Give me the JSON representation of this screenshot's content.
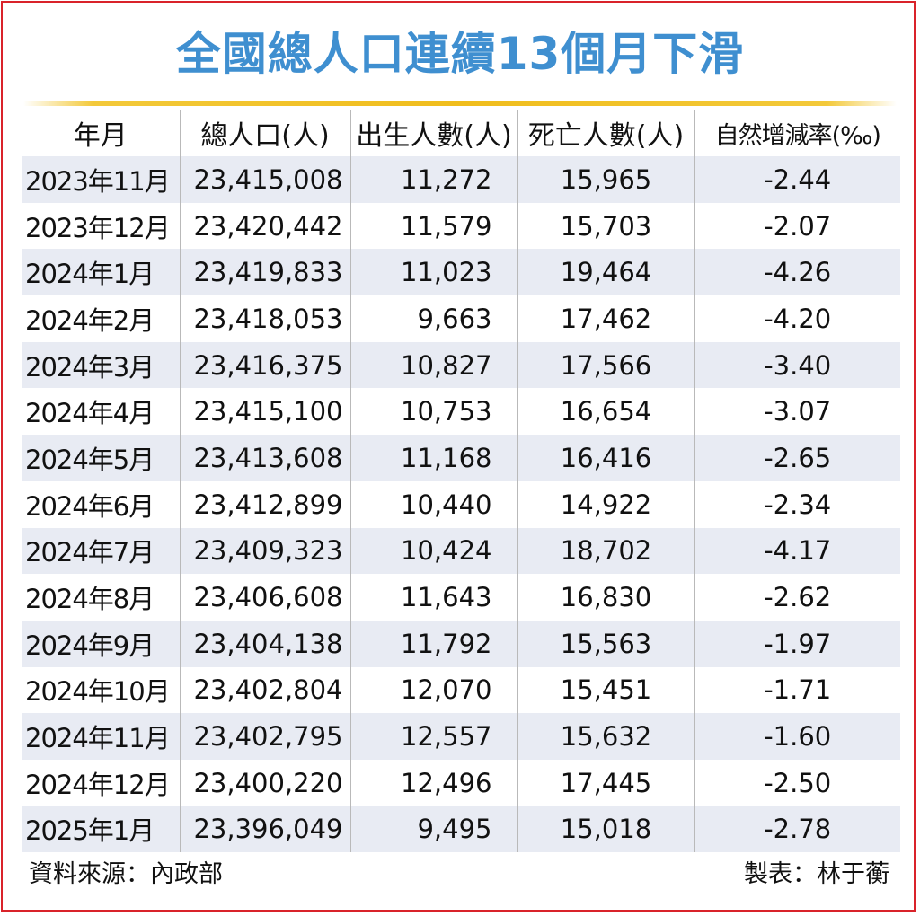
{
  "title": "全國總人口連續13個月下滑",
  "header": {
    "month": "年月",
    "population": "總人口(人)",
    "births": "出生人數(人)",
    "deaths": "死亡人數(人)",
    "rate": "自然增減率(‰)"
  },
  "rows": [
    {
      "month": "2023年11月",
      "population": "23,415,008",
      "births": "11,272",
      "deaths": "15,965",
      "rate": "-2.44"
    },
    {
      "month": "2023年12月",
      "population": "23,420,442",
      "births": "11,579",
      "deaths": "15,703",
      "rate": "-2.07"
    },
    {
      "month": "2024年1月",
      "population": "23,419,833",
      "births": "11,023",
      "deaths": "19,464",
      "rate": "-4.26"
    },
    {
      "month": "2024年2月",
      "population": "23,418,053",
      "births": "9,663",
      "deaths": "17,462",
      "rate": "-4.20"
    },
    {
      "month": "2024年3月",
      "population": "23,416,375",
      "births": "10,827",
      "deaths": "17,566",
      "rate": "-3.40"
    },
    {
      "month": "2024年4月",
      "population": "23,415,100",
      "births": "10,753",
      "deaths": "16,654",
      "rate": "-3.07"
    },
    {
      "month": "2024年5月",
      "population": "23,413,608",
      "births": "11,168",
      "deaths": "16,416",
      "rate": "-2.65"
    },
    {
      "month": "2024年6月",
      "population": "23,412,899",
      "births": "10,440",
      "deaths": "14,922",
      "rate": "-2.34"
    },
    {
      "month": "2024年7月",
      "population": "23,409,323",
      "births": "10,424",
      "deaths": "18,702",
      "rate": "-4.17"
    },
    {
      "month": "2024年8月",
      "population": "23,406,608",
      "births": "11,643",
      "deaths": "16,830",
      "rate": "-2.62"
    },
    {
      "month": "2024年9月",
      "population": "23,404,138",
      "births": "11,792",
      "deaths": "15,563",
      "rate": "-1.97"
    },
    {
      "month": "2024年10月",
      "population": "23,402,804",
      "births": "12,070",
      "deaths": "15,451",
      "rate": "-1.71"
    },
    {
      "month": "2024年11月",
      "population": "23,402,795",
      "births": "12,557",
      "deaths": "15,632",
      "rate": "-1.60"
    },
    {
      "month": "2024年12月",
      "population": "23,400,220",
      "births": "12,496",
      "deaths": "17,445",
      "rate": "-2.50"
    },
    {
      "month": "2025年1月",
      "population": "23,396,049",
      "births": "9,495",
      "deaths": "15,018",
      "rate": "-2.78"
    }
  ],
  "footer": {
    "source": "資料來源：內政部",
    "credit": "製表：林于蘅"
  },
  "colors": {
    "title": "#3f8fd0",
    "rule": "#f0bd1c",
    "row_shade": "#e8ebf3",
    "frame": "#d9232a"
  }
}
